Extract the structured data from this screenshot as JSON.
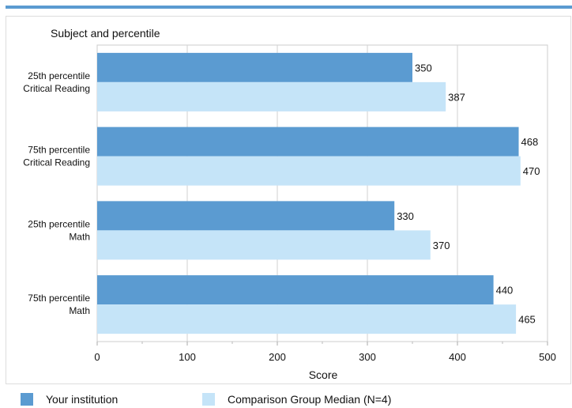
{
  "chart_data": {
    "type": "bar",
    "orientation": "horizontal",
    "category_axis_title": "Subject and percentile",
    "xlabel": "Score",
    "xlim": [
      0,
      500
    ],
    "ticks": [
      0,
      100,
      200,
      300,
      400,
      500
    ],
    "grid": true,
    "legend_position": "bottom",
    "categories": [
      [
        "25th percentile",
        "Critical Reading"
      ],
      [
        "75th percentile",
        "Critical Reading"
      ],
      [
        "25th percentile",
        "Math"
      ],
      [
        "75th percentile",
        "Math"
      ]
    ],
    "series": [
      {
        "name": "Your institution",
        "color": "#5b9bd1",
        "values": [
          350,
          468,
          330,
          440
        ]
      },
      {
        "name": "Comparison Group Median (N=4)",
        "color": "#c5e4f8",
        "values": [
          387,
          470,
          370,
          465
        ]
      }
    ]
  }
}
